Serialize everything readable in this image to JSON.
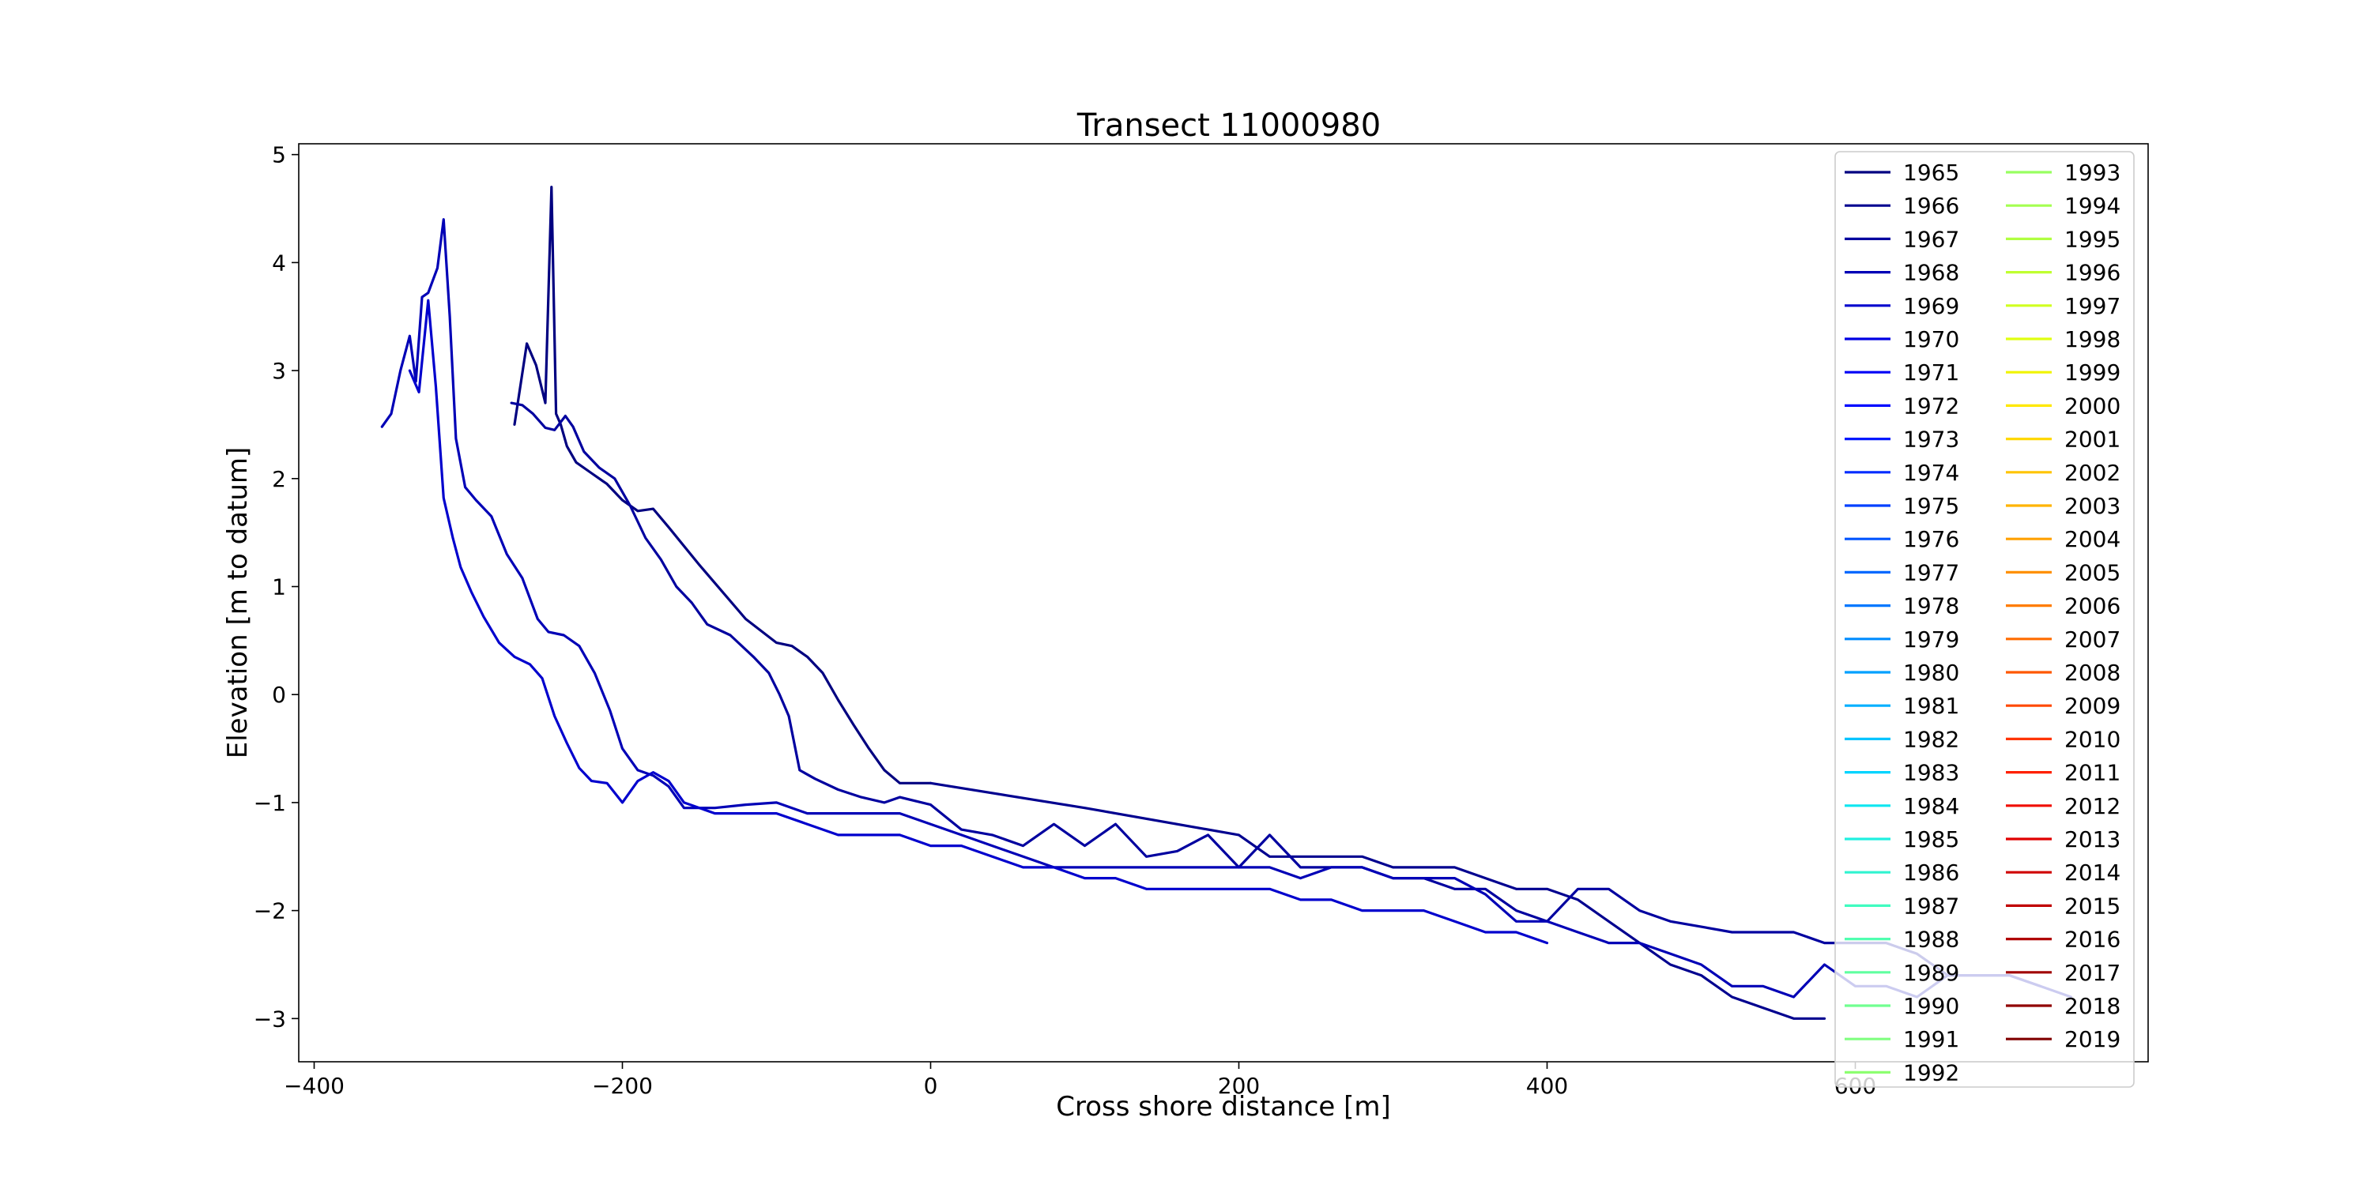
{
  "chart_data": {
    "type": "line",
    "title": "Transect 11000980",
    "xlabel": "Cross shore distance [m]",
    "ylabel": "Elevation [m to datum]",
    "xlim": [
      -410,
      790
    ],
    "ylim": [
      -3.4,
      5.1
    ],
    "x_ticks": [
      -400,
      -200,
      0,
      200,
      400,
      600
    ],
    "x_tick_labels": [
      "−400",
      "−200",
      "0",
      "200",
      "400",
      "600"
    ],
    "y_ticks": [
      -3,
      -2,
      -1,
      0,
      1,
      2,
      3,
      4,
      5
    ],
    "y_tick_labels": [
      "−3",
      "−2",
      "−1",
      "0",
      "1",
      "2",
      "3",
      "4",
      "5"
    ],
    "grid": false,
    "legend_position": "upper-right",
    "legend_columns": 2,
    "legend": [
      {
        "label": "1965",
        "color": "#000080"
      },
      {
        "label": "1966",
        "color": "#00008f"
      },
      {
        "label": "1967",
        "color": "#00009f"
      },
      {
        "label": "1968",
        "color": "#0000b6"
      },
      {
        "label": "1969",
        "color": "#0000cd"
      },
      {
        "label": "1970",
        "color": "#0000e3"
      },
      {
        "label": "1971",
        "color": "#0000f6"
      },
      {
        "label": "1972",
        "color": "#0008ff"
      },
      {
        "label": "1973",
        "color": "#0018ff"
      },
      {
        "label": "1974",
        "color": "#002cff"
      },
      {
        "label": "1975",
        "color": "#0040ff"
      },
      {
        "label": "1976",
        "color": "#0054ff"
      },
      {
        "label": "1977",
        "color": "#0068ff"
      },
      {
        "label": "1978",
        "color": "#0078ff"
      },
      {
        "label": "1979",
        "color": "#008cff"
      },
      {
        "label": "1980",
        "color": "#00a0ff"
      },
      {
        "label": "1981",
        "color": "#00b0ff"
      },
      {
        "label": "1982",
        "color": "#00c4ff"
      },
      {
        "label": "1983",
        "color": "#00d4ff"
      },
      {
        "label": "1984",
        "color": "#0ee6f0"
      },
      {
        "label": "1985",
        "color": "#20f0e0"
      },
      {
        "label": "1986",
        "color": "#30f4d0"
      },
      {
        "label": "1987",
        "color": "#40fcc0"
      },
      {
        "label": "1988",
        "color": "#50ffb0"
      },
      {
        "label": "1989",
        "color": "#60ffa0"
      },
      {
        "label": "1990",
        "color": "#70ff90"
      },
      {
        "label": "1991",
        "color": "#80ff80"
      },
      {
        "label": "1992",
        "color": "#8cff70"
      },
      {
        "label": "1993",
        "color": "#98ff60"
      },
      {
        "label": "1994",
        "color": "#a4ff50"
      },
      {
        "label": "1995",
        "color": "#b0ff40"
      },
      {
        "label": "1996",
        "color": "#c0ff30"
      },
      {
        "label": "1997",
        "color": "#d0ff20"
      },
      {
        "label": "1998",
        "color": "#e0ff10"
      },
      {
        "label": "1999",
        "color": "#f0f400"
      },
      {
        "label": "2000",
        "color": "#ffe800"
      },
      {
        "label": "2001",
        "color": "#ffd800"
      },
      {
        "label": "2002",
        "color": "#ffc400"
      },
      {
        "label": "2003",
        "color": "#ffb400"
      },
      {
        "label": "2004",
        "color": "#ffa000"
      },
      {
        "label": "2005",
        "color": "#ff9000"
      },
      {
        "label": "2006",
        "color": "#ff7c00"
      },
      {
        "label": "2007",
        "color": "#ff6c00"
      },
      {
        "label": "2008",
        "color": "#ff5800"
      },
      {
        "label": "2009",
        "color": "#ff4800"
      },
      {
        "label": "2010",
        "color": "#ff3400"
      },
      {
        "label": "2011",
        "color": "#ff2000"
      },
      {
        "label": "2012",
        "color": "#f00e00"
      },
      {
        "label": "2013",
        "color": "#e00000"
      },
      {
        "label": "2014",
        "color": "#d00000"
      },
      {
        "label": "2015",
        "color": "#c00000"
      },
      {
        "label": "2016",
        "color": "#b00000"
      },
      {
        "label": "2017",
        "color": "#a00000"
      },
      {
        "label": "2018",
        "color": "#900000"
      },
      {
        "label": "2019",
        "color": "#800000"
      }
    ],
    "series": [
      {
        "name": "1965",
        "color": "#000080",
        "x": [
          -270,
          -262,
          -256,
          -250,
          -246,
          -243,
          -240,
          -236,
          -230,
          -220,
          -210,
          -200,
          -190,
          -180,
          -170,
          -150,
          -120,
          -100,
          -90,
          -80,
          -70,
          -60,
          -50,
          -40,
          -30,
          -20,
          -10,
          0
        ],
        "y": [
          2.5,
          3.25,
          3.05,
          2.7,
          4.7,
          2.6,
          2.5,
          2.3,
          2.15,
          2.05,
          1.95,
          1.8,
          1.7,
          1.72,
          1.55,
          1.2,
          0.7,
          0.48,
          0.45,
          0.35,
          0.2,
          -0.05,
          -0.28,
          -0.5,
          -0.7,
          -0.82,
          -0.82,
          -0.82
        ]
      },
      {
        "name": "1966",
        "color": "#00008f",
        "x": [
          0,
          100,
          200,
          220,
          240,
          280,
          300,
          340,
          380,
          400,
          420,
          440,
          460,
          480,
          500,
          520,
          540,
          560,
          580
        ],
        "y": [
          -0.82,
          -1.05,
          -1.3,
          -1.5,
          -1.5,
          -1.5,
          -1.6,
          -1.6,
          -1.8,
          -1.8,
          -1.9,
          -2.1,
          -2.3,
          -2.5,
          -2.6,
          -2.8,
          -2.9,
          -3.0,
          -3.0
        ]
      },
      {
        "name": "1967",
        "color": "#00009f",
        "x": [
          -272,
          -265,
          -258,
          -250,
          -244,
          -237,
          -232,
          -225,
          -215,
          -205,
          -195,
          -185,
          -175,
          -165,
          -155,
          -145,
          -130,
          -115,
          -105,
          -98,
          -92,
          -85,
          -75,
          -60,
          -45,
          -30,
          -20,
          0,
          20,
          40,
          60,
          80,
          100,
          120,
          140,
          160,
          180,
          200,
          220,
          240,
          260,
          280,
          300,
          320,
          340,
          360,
          380,
          400,
          420,
          440,
          460,
          480,
          500,
          520,
          540,
          560,
          580,
          600,
          620,
          640,
          660,
          680,
          700,
          720
        ],
        "y": [
          2.7,
          2.68,
          2.6,
          2.47,
          2.45,
          2.58,
          2.48,
          2.25,
          2.1,
          2.0,
          1.75,
          1.45,
          1.25,
          1.0,
          0.85,
          0.65,
          0.55,
          0.35,
          0.2,
          0.0,
          -0.2,
          -0.7,
          -0.78,
          -0.88,
          -0.95,
          -1.0,
          -0.95,
          -1.02,
          -1.25,
          -1.3,
          -1.4,
          -1.2,
          -1.4,
          -1.2,
          -1.5,
          -1.45,
          -1.3,
          -1.6,
          -1.3,
          -1.6,
          -1.6,
          -1.6,
          -1.7,
          -1.7,
          -1.8,
          -1.8,
          -2.0,
          -2.1,
          -1.8,
          -1.8,
          -2.0,
          -2.1,
          -2.15,
          -2.2,
          -2.2,
          -2.2,
          -2.3,
          -2.3,
          -2.3,
          -2.4,
          -2.6,
          -2.6,
          -2.6,
          -2.7
        ]
      },
      {
        "name": "1968",
        "color": "#0000b6",
        "x": [
          -356,
          -350,
          -344,
          -338,
          -334,
          -330,
          -326,
          -320,
          -316,
          -312,
          -308,
          -302,
          -295,
          -285,
          -275,
          -265,
          -255,
          -248,
          -238,
          -228,
          -218,
          -208,
          -200,
          -190,
          -180,
          -170,
          -160,
          -150,
          -140,
          -120,
          -100,
          -80,
          -60,
          -40,
          -20,
          0,
          20,
          40,
          60,
          80,
          100,
          120,
          140,
          160,
          180,
          200,
          220,
          240,
          260,
          280,
          300,
          320,
          340,
          360,
          380,
          400,
          420,
          440,
          460,
          480,
          500,
          520,
          540,
          560,
          580,
          600,
          620,
          640,
          660,
          680,
          700,
          720,
          740
        ],
        "y": [
          2.48,
          2.6,
          3.0,
          3.32,
          2.9,
          3.68,
          3.72,
          3.95,
          4.4,
          3.5,
          2.37,
          1.92,
          1.8,
          1.65,
          1.3,
          1.08,
          0.7,
          0.58,
          0.55,
          0.45,
          0.2,
          -0.15,
          -0.5,
          -0.7,
          -0.75,
          -0.85,
          -1.05,
          -1.05,
          -1.05,
          -1.02,
          -1.0,
          -1.1,
          -1.1,
          -1.1,
          -1.1,
          -1.2,
          -1.3,
          -1.4,
          -1.5,
          -1.6,
          -1.6,
          -1.6,
          -1.6,
          -1.6,
          -1.6,
          -1.6,
          -1.6,
          -1.7,
          -1.6,
          -1.6,
          -1.7,
          -1.7,
          -1.7,
          -1.85,
          -2.1,
          -2.1,
          -2.2,
          -2.3,
          -2.3,
          -2.4,
          -2.5,
          -2.7,
          -2.7,
          -2.8,
          -2.5,
          -2.7,
          -2.7,
          -2.8,
          -2.6,
          -2.6,
          -2.6,
          -2.7,
          -2.8
        ]
      },
      {
        "name": "1969",
        "color": "#0000cd",
        "x": [
          -338,
          -332,
          -326,
          -321,
          -316,
          -310,
          -305,
          -298,
          -290,
          -280,
          -270,
          -260,
          -252,
          -244,
          -236,
          -228,
          -220,
          -210,
          -200,
          -190,
          -180,
          -170,
          -160,
          -150,
          -140,
          -120,
          -100,
          -80,
          -60,
          -40,
          -20,
          0,
          20,
          40,
          60,
          80,
          100,
          120,
          140,
          160,
          180,
          200,
          220,
          240,
          260,
          280,
          300,
          320,
          340,
          360,
          380,
          400
        ],
        "y": [
          3.0,
          2.8,
          3.65,
          2.85,
          1.82,
          1.45,
          1.18,
          0.95,
          0.72,
          0.48,
          0.35,
          0.28,
          0.15,
          -0.2,
          -0.45,
          -0.68,
          -0.8,
          -0.82,
          -1.0,
          -0.8,
          -0.72,
          -0.8,
          -1.0,
          -1.05,
          -1.1,
          -1.1,
          -1.1,
          -1.2,
          -1.3,
          -1.3,
          -1.3,
          -1.4,
          -1.4,
          -1.5,
          -1.6,
          -1.6,
          -1.7,
          -1.7,
          -1.8,
          -1.8,
          -1.8,
          -1.8,
          -1.8,
          -1.9,
          -1.9,
          -2.0,
          -2.0,
          -2.0,
          -2.1,
          -2.2,
          -2.2,
          -2.3
        ]
      }
    ]
  }
}
